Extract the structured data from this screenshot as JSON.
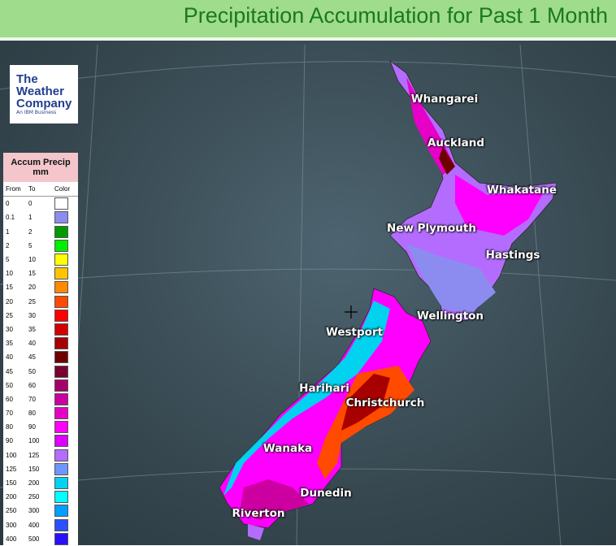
{
  "header": {
    "title": "Precipitation Accumulation for Past 1 Month"
  },
  "logo": {
    "lines": [
      "The",
      "Weather",
      "Company"
    ],
    "tagline": "An IBM Business"
  },
  "legend": {
    "title": "Accum Precip mm",
    "headers": [
      "From",
      "To",
      "Color"
    ],
    "rows": [
      {
        "from": 0,
        "to": 0,
        "color": "#ffffff"
      },
      {
        "from": 0.1,
        "to": 1,
        "color": "#8c8cf0"
      },
      {
        "from": 1,
        "to": 2,
        "color": "#009a00"
      },
      {
        "from": 2,
        "to": 5,
        "color": "#00ee00"
      },
      {
        "from": 5,
        "to": 10,
        "color": "#ffff00"
      },
      {
        "from": 10,
        "to": 15,
        "color": "#ffc400"
      },
      {
        "from": 15,
        "to": 20,
        "color": "#ff8a00"
      },
      {
        "from": 20,
        "to": 25,
        "color": "#ff4a00"
      },
      {
        "from": 25,
        "to": 30,
        "color": "#ff0000"
      },
      {
        "from": 30,
        "to": 35,
        "color": "#d40000"
      },
      {
        "from": 35,
        "to": 40,
        "color": "#a80000"
      },
      {
        "from": 40,
        "to": 45,
        "color": "#6e0000"
      },
      {
        "from": 45,
        "to": 50,
        "color": "#7a0030"
      },
      {
        "from": 50,
        "to": 60,
        "color": "#a8006a"
      },
      {
        "from": 60,
        "to": 70,
        "color": "#cc00a0"
      },
      {
        "from": 70,
        "to": 80,
        "color": "#e600c8"
      },
      {
        "from": 80,
        "to": 90,
        "color": "#ff00ff"
      },
      {
        "from": 90,
        "to": 100,
        "color": "#dc00ff"
      },
      {
        "from": 100,
        "to": 125,
        "color": "#b46cff"
      },
      {
        "from": 125,
        "to": 150,
        "color": "#6e96ff"
      },
      {
        "from": 150,
        "to": 200,
        "color": "#00d2f0"
      },
      {
        "from": 200,
        "to": 250,
        "color": "#00ffff"
      },
      {
        "from": 250,
        "to": 300,
        "color": "#00a0ff"
      },
      {
        "from": 300,
        "to": 400,
        "color": "#2a50ff"
      },
      {
        "from": 400,
        "to": 500,
        "color": "#2a10ff"
      }
    ]
  },
  "cities": [
    "Whangarei",
    "Auckland",
    "Whakatane",
    "New Plymouth",
    "Hastings",
    "Wellington",
    "Westport",
    "Harihari",
    "Christchurch",
    "Wanaka",
    "Dunedin",
    "Riverton"
  ]
}
